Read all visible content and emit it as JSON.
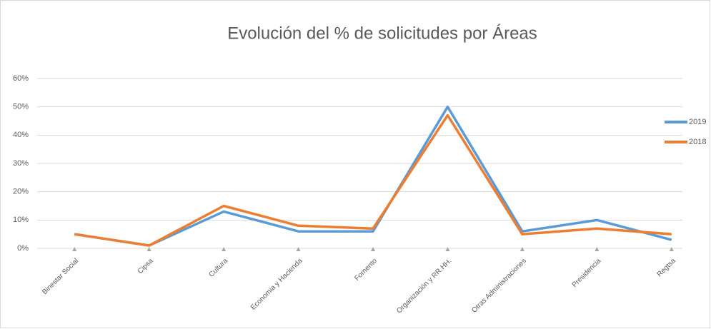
{
  "chart_data": {
    "type": "line",
    "title": "Evolución del % de solicitudes por Áreas",
    "categories": [
      "Binestar Social",
      "Cipsa",
      "Cultura",
      "Economia y Hacienda",
      "Fomento",
      "Organización y RR.HH.",
      "Otras Administraciones",
      "Presidencia",
      "Regtsa"
    ],
    "series": [
      {
        "name": "2019",
        "color": "#5b9bd5",
        "values": [
          5,
          1,
          13,
          6,
          6,
          50,
          6,
          10,
          3
        ]
      },
      {
        "name": "2018",
        "color": "#ed7d31",
        "values": [
          5,
          1,
          15,
          8,
          7,
          47,
          5,
          7,
          5
        ]
      }
    ],
    "ylim": [
      0,
      60
    ],
    "yticks": [
      {
        "value": 0,
        "label": "0%"
      },
      {
        "value": 10,
        "label": "10%"
      },
      {
        "value": 20,
        "label": "20%"
      },
      {
        "value": 30,
        "label": "30%"
      },
      {
        "value": 40,
        "label": "40%"
      },
      {
        "value": 50,
        "label": "50%"
      },
      {
        "value": 60,
        "label": "60%"
      }
    ],
    "grid": true,
    "legend": "right"
  }
}
